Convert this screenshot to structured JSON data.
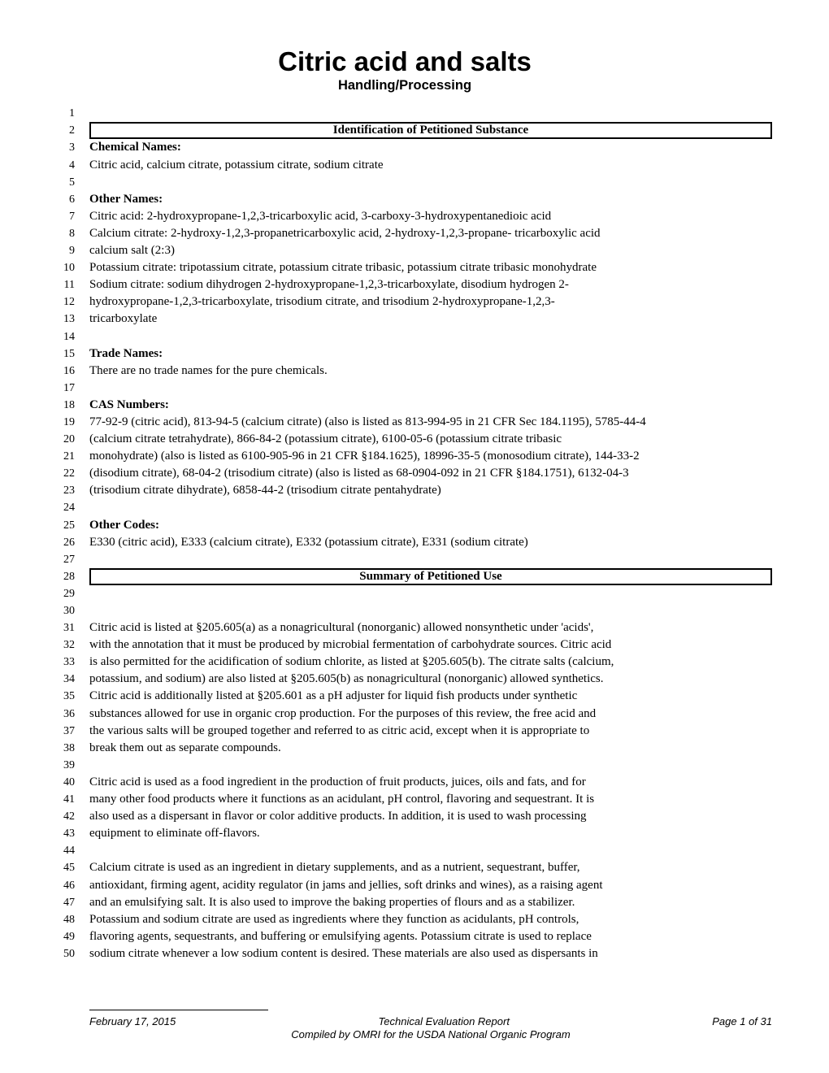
{
  "title": "Citric acid and salts",
  "subtitle": "Handling/Processing",
  "title_fontsize": 33,
  "subtitle_fontsize": 16.5,
  "body_fontsize": 15,
  "line_height": 21.1,
  "line_number_fontsize": 14,
  "line_count": 50,
  "colors": {
    "background": "#ffffff",
    "text": "#000000",
    "border": "#000000"
  },
  "lines": [
    {
      "n": 1,
      "type": "blank",
      "text": ""
    },
    {
      "n": 2,
      "type": "header",
      "text": "Identification of Petitioned Substance"
    },
    {
      "n": 3,
      "type": "bold",
      "text": "Chemical Names:"
    },
    {
      "n": 4,
      "type": "text",
      "text": "Citric acid, calcium citrate, potassium citrate, sodium citrate"
    },
    {
      "n": 5,
      "type": "blank",
      "text": ""
    },
    {
      "n": 6,
      "type": "bold",
      "text": "Other Names:"
    },
    {
      "n": 7,
      "type": "text",
      "text": "Citric acid: 2-hydroxypropane-1,2,3-tricarboxylic acid, 3-carboxy-3-hydroxypentanedioic acid"
    },
    {
      "n": 8,
      "type": "text",
      "text": "Calcium citrate: 2-hydroxy-1,2,3-propanetricarboxylic acid, 2-hydroxy-1,2,3-propane- tricarboxylic acid"
    },
    {
      "n": 9,
      "type": "text",
      "text": "calcium salt (2:3)"
    },
    {
      "n": 10,
      "type": "text",
      "text": "Potassium citrate: tripotassium citrate, potassium citrate tribasic, potassium citrate tribasic monohydrate"
    },
    {
      "n": 11,
      "type": "text",
      "text": "Sodium citrate: sodium dihydrogen 2-hydroxypropane-1,2,3-tricarboxylate, disodium hydrogen 2-"
    },
    {
      "n": 12,
      "type": "text",
      "text": "hydroxypropane-1,2,3-tricarboxylate, trisodium citrate, and trisodium 2-hydroxypropane-1,2,3-"
    },
    {
      "n": 13,
      "type": "text",
      "text": "tricarboxylate"
    },
    {
      "n": 14,
      "type": "blank",
      "text": ""
    },
    {
      "n": 15,
      "type": "bold",
      "text": "Trade Names:"
    },
    {
      "n": 16,
      "type": "text",
      "text": "There are no trade names for the pure chemicals."
    },
    {
      "n": 17,
      "type": "blank",
      "text": ""
    },
    {
      "n": 18,
      "type": "bold",
      "text": "CAS Numbers:"
    },
    {
      "n": 19,
      "type": "text",
      "text": "77-92-9 (citric acid), 813-94-5 (calcium citrate) (also is listed as 813-994-95 in 21 CFR Sec 184.1195), 5785-44-4"
    },
    {
      "n": 20,
      "type": "text",
      "text": "(calcium citrate tetrahydrate), 866-84-2 (potassium citrate), 6100-05-6 (potassium citrate tribasic"
    },
    {
      "n": 21,
      "type": "text",
      "text": "monohydrate) (also is listed as 6100-905-96 in 21 CFR §184.1625), 18996-35-5 (monosodium citrate), 144-33-2"
    },
    {
      "n": 22,
      "type": "text",
      "text": "(disodium citrate), 68-04-2 (trisodium citrate) (also is listed as 68-0904-092 in 21 CFR §184.1751), 6132-04-3"
    },
    {
      "n": 23,
      "type": "text",
      "text": "(trisodium citrate dihydrate), 6858-44-2 (trisodium citrate pentahydrate)"
    },
    {
      "n": 24,
      "type": "blank",
      "text": ""
    },
    {
      "n": 25,
      "type": "bold",
      "text": "Other Codes:"
    },
    {
      "n": 26,
      "type": "text",
      "text": "E330 (citric acid), E333 (calcium citrate), E332 (potassium citrate), E331 (sodium citrate)"
    },
    {
      "n": 27,
      "type": "blank",
      "text": ""
    },
    {
      "n": 28,
      "type": "header",
      "text": "Summary of Petitioned Use"
    },
    {
      "n": 29,
      "type": "blank",
      "text": ""
    },
    {
      "n": 30,
      "type": "blank",
      "text": ""
    },
    {
      "n": 31,
      "type": "text",
      "text": "Citric acid is listed at §205.605(a) as a nonagricultural (nonorganic) allowed nonsynthetic under 'acids',"
    },
    {
      "n": 32,
      "type": "text",
      "text": "with the annotation that it must be produced by microbial fermentation of carbohydrate sources. Citric acid"
    },
    {
      "n": 33,
      "type": "text",
      "text": "is also permitted for the acidification of sodium chlorite, as listed at §205.605(b). The citrate salts (calcium,"
    },
    {
      "n": 34,
      "type": "text",
      "text": "potassium, and sodium) are also listed at §205.605(b) as nonagricultural (nonorganic) allowed synthetics."
    },
    {
      "n": 35,
      "type": "text",
      "text": "Citric acid is additionally listed at §205.601 as a pH adjuster for liquid fish products under synthetic"
    },
    {
      "n": 36,
      "type": "text",
      "text": "substances allowed for use in organic crop production. For the purposes of this review, the free acid and"
    },
    {
      "n": 37,
      "type": "text",
      "text": "the various salts will be grouped together and referred to as citric acid, except when it is appropriate to"
    },
    {
      "n": 38,
      "type": "text",
      "text": "break them out as separate compounds."
    },
    {
      "n": 39,
      "type": "blank",
      "text": ""
    },
    {
      "n": 40,
      "type": "text",
      "text": "Citric acid is used as a food ingredient in the production of fruit products, juices, oils and fats, and for"
    },
    {
      "n": 41,
      "type": "text",
      "text": "many other food products where it functions as an acidulant, pH control, flavoring and sequestrant. It is"
    },
    {
      "n": 42,
      "type": "text",
      "text": "also used as a dispersant in flavor or color additive products. In addition, it is used to wash processing"
    },
    {
      "n": 43,
      "type": "text",
      "text": "equipment to eliminate off-flavors."
    },
    {
      "n": 44,
      "type": "blank",
      "text": ""
    },
    {
      "n": 45,
      "type": "text",
      "text": "Calcium citrate is used as an ingredient in dietary supplements, and as a nutrient, sequestrant, buffer,"
    },
    {
      "n": 46,
      "type": "text",
      "text": "antioxidant, firming agent, acidity regulator (in jams and jellies, soft drinks and wines), as a raising agent"
    },
    {
      "n": 47,
      "type": "text",
      "text": "and an emulsifying salt. It is also used to improve the baking properties of flours and as a stabilizer."
    },
    {
      "n": 48,
      "type": "text",
      "text": "Potassium and sodium citrate are used as ingredients where they function as acidulants, pH controls,"
    },
    {
      "n": 49,
      "type": "text",
      "text": "flavoring agents, sequestrants, and buffering or emulsifying agents. Potassium citrate is used to replace"
    },
    {
      "n": 50,
      "type": "text",
      "text": "sodium citrate whenever a low sodium content is desired. These materials are also used as dispersants in"
    }
  ],
  "footer": {
    "date": "February 17, 2015",
    "center_top": "Technical Evaluation Report",
    "center_bottom": "Compiled by OMRI for the USDA National Organic Program",
    "right": "Page 1 of 31",
    "font_family": "Arial",
    "font_size": 13,
    "font_style": "italic"
  }
}
